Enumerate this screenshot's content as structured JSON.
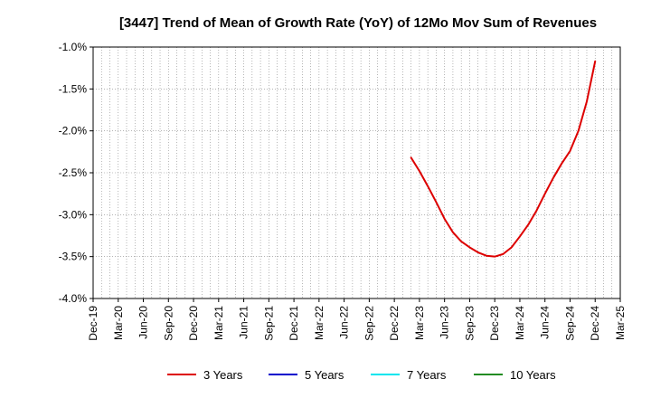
{
  "chart_data": {
    "type": "line",
    "title": "[3447]  Trend of Mean of Growth Rate (YoY) of 12Mo Mov Sum of Revenues",
    "xlabel": "",
    "ylabel": "",
    "ylim": [
      -4.0,
      -1.0
    ],
    "y_ticks": [
      -1.0,
      -1.5,
      -2.0,
      -2.5,
      -3.0,
      -3.5,
      -4.0
    ],
    "y_tick_labels": [
      "-1.0%",
      "-1.5%",
      "-2.0%",
      "-2.5%",
      "-3.0%",
      "-3.5%",
      "-4.0%"
    ],
    "x_tick_labels": [
      "Dec-19",
      "Mar-20",
      "Jun-20",
      "Sep-20",
      "Dec-20",
      "Mar-21",
      "Jun-21",
      "Sep-21",
      "Dec-21",
      "Mar-22",
      "Jun-22",
      "Sep-22",
      "Dec-22",
      "Mar-23",
      "Jun-23",
      "Sep-23",
      "Dec-23",
      "Mar-24",
      "Jun-24",
      "Sep-24",
      "Dec-24",
      "Mar-25"
    ],
    "x_start": "Dec-19",
    "months_total": 63,
    "grid": true,
    "legend_position": "bottom",
    "series": [
      {
        "name": "3 Years",
        "color": "#dd0000",
        "x_month_index": [
          38,
          39,
          40,
          41,
          42,
          43,
          44,
          45,
          46,
          47,
          48,
          49,
          50,
          51,
          52,
          53,
          54,
          55,
          56,
          57,
          58,
          59,
          60
        ],
        "values": [
          -2.32,
          -2.48,
          -2.66,
          -2.85,
          -3.05,
          -3.21,
          -3.32,
          -3.39,
          -3.45,
          -3.49,
          -3.5,
          -3.47,
          -3.39,
          -3.26,
          -3.12,
          -2.95,
          -2.75,
          -2.56,
          -2.39,
          -2.24,
          -2.0,
          -1.65,
          -1.17
        ]
      },
      {
        "name": "5 Years",
        "color": "#0000cc",
        "x_month_index": [],
        "values": []
      },
      {
        "name": "7 Years",
        "color": "#00e5ee",
        "x_month_index": [],
        "values": []
      },
      {
        "name": "10 Years",
        "color": "#228b22",
        "x_month_index": [],
        "values": []
      }
    ]
  }
}
